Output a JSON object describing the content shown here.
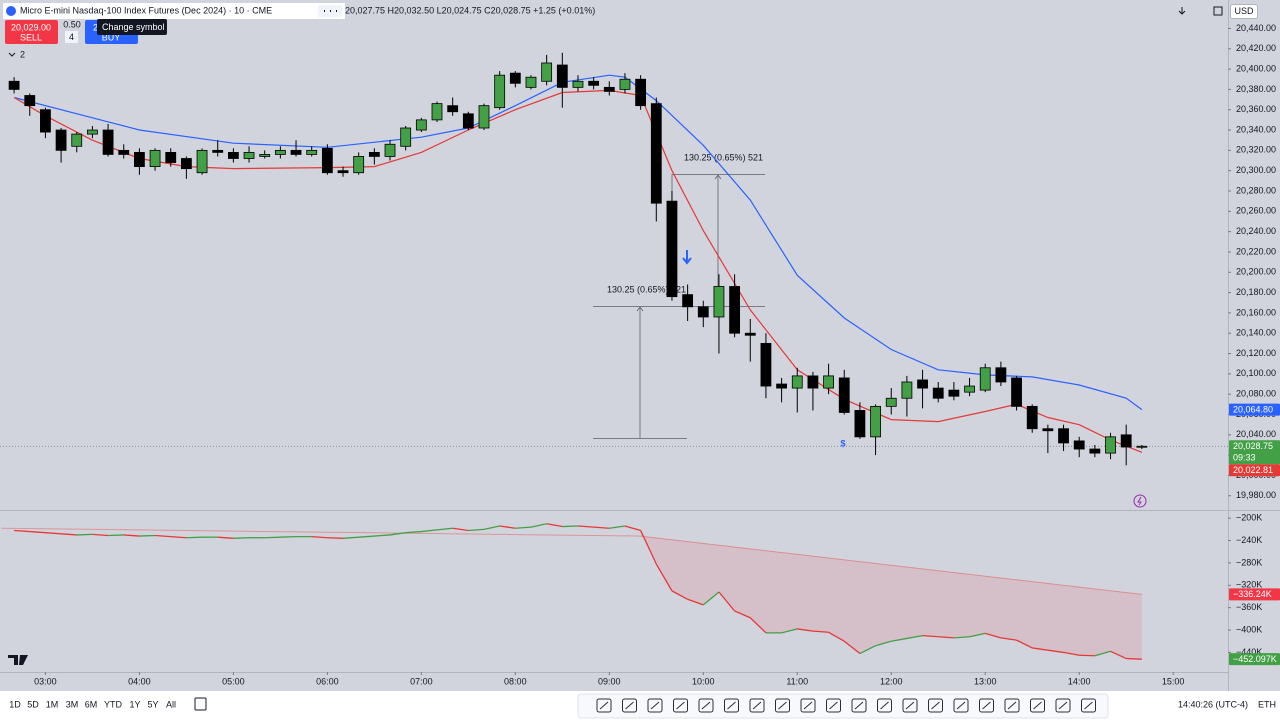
{
  "header": {
    "title": "Micro E-mini Nasdaq-100 Index Futures (Dec 2024) · 10 · CME",
    "ohlc": "20,027.75 H20,032.50 L20,024.75 C20,028.75 +1.25 (+0.01%)",
    "currency": "USD",
    "sell_price": "20,029.00",
    "sell": "SELL",
    "spread": "0.50",
    "quantity": "4",
    "buy_price": "2",
    "buy": "BUY",
    "tooltip": "Change symbol",
    "indicators": "2"
  },
  "chart_data": [
    {
      "type": "candlestick",
      "x": [
        160,
        170,
        180,
        190,
        200,
        210,
        220,
        230,
        240,
        250,
        260,
        270,
        280,
        290,
        300,
        310,
        320,
        330,
        340,
        350,
        360,
        370,
        380,
        390,
        400,
        410,
        420,
        430,
        440,
        450,
        460,
        470,
        480,
        490,
        500,
        510,
        520,
        530,
        540,
        550,
        560,
        570,
        580,
        590,
        600,
        610,
        620,
        630,
        640,
        650,
        660,
        670,
        680,
        690,
        700,
        710,
        720,
        730,
        740,
        750,
        760,
        770,
        780,
        790,
        800,
        810,
        820,
        830,
        840,
        850,
        860,
        870,
        880
      ],
      "open": [
        20388,
        20374,
        20360,
        20340,
        20324,
        20336,
        20340,
        20320,
        20318,
        20304,
        20318,
        20312,
        20298,
        20320,
        20318,
        20312,
        20314,
        20316,
        20320,
        20316,
        20322,
        20300,
        20298,
        20318,
        20314,
        20324,
        20340,
        20350,
        20364,
        20356,
        20342,
        20362,
        20396,
        20382,
        20388,
        20404,
        20382,
        20388,
        20382,
        20380,
        20390,
        20366,
        20270,
        20178,
        20166,
        20156,
        20186,
        20140,
        20130,
        20090,
        20086,
        20098,
        20086,
        20096,
        20064,
        20038,
        20068,
        20076,
        20094,
        20086,
        20084,
        20082,
        20084,
        20106,
        20096,
        20068,
        20046,
        20046,
        20034,
        20026,
        20022,
        20040,
        20028
      ],
      "high": [
        20392,
        20376,
        20362,
        20342,
        20338,
        20344,
        20346,
        20326,
        20322,
        20322,
        20322,
        20314,
        20322,
        20330,
        20322,
        20324,
        20320,
        20324,
        20330,
        20324,
        20326,
        20304,
        20318,
        20322,
        20330,
        20344,
        20352,
        20368,
        20372,
        20358,
        20366,
        20398,
        20398,
        20394,
        20414,
        20416,
        20394,
        20392,
        20388,
        20396,
        20394,
        20372,
        20280,
        20188,
        20172,
        20198,
        20198,
        20154,
        20140,
        20096,
        20106,
        20102,
        20110,
        20104,
        20072,
        20070,
        20086,
        20098,
        20104,
        20092,
        20092,
        20096,
        20110,
        20112,
        20098,
        20070,
        20050,
        20050,
        20038,
        20030,
        20042,
        20050,
        20030
      ],
      "low": [
        20376,
        20354,
        20332,
        20308,
        20318,
        20332,
        20314,
        20312,
        20296,
        20300,
        20304,
        20292,
        20296,
        20314,
        20308,
        20308,
        20312,
        20312,
        20314,
        20314,
        20296,
        20294,
        20296,
        20306,
        20310,
        20320,
        20338,
        20348,
        20354,
        20340,
        20340,
        20360,
        20382,
        20380,
        20384,
        20362,
        20378,
        20380,
        20374,
        20376,
        20360,
        20250,
        20172,
        20152,
        20146,
        20120,
        20136,
        20112,
        20076,
        20072,
        20062,
        20064,
        20080,
        20060,
        20036,
        20020,
        20060,
        20058,
        20066,
        20072,
        20074,
        20078,
        20082,
        20088,
        20064,
        20042,
        20022,
        20024,
        20018,
        20018,
        20016,
        20010,
        20026
      ],
      "close": [
        20380,
        20364,
        20338,
        20320,
        20336,
        20340,
        20316,
        20316,
        20304,
        20320,
        20308,
        20302,
        20320,
        20318,
        20312,
        20318,
        20316,
        20320,
        20316,
        20320,
        20298,
        20298,
        20314,
        20314,
        20326,
        20342,
        20350,
        20366,
        20358,
        20342,
        20364,
        20394,
        20386,
        20392,
        20406,
        20382,
        20388,
        20384,
        20378,
        20390,
        20364,
        20268,
        20176,
        20166,
        20156,
        20186,
        20140,
        20138,
        20088,
        20086,
        20098,
        20086,
        20098,
        20062,
        20038,
        20068,
        20076,
        20092,
        20086,
        20076,
        20078,
        20088,
        20106,
        20092,
        20068,
        20046,
        20044,
        20032,
        20026,
        20022,
        20038,
        20028,
        20028.75
      ],
      "up_color": "#43a047",
      "down_color": "#000000",
      "overlays": [
        {
          "color": "#2962ff",
          "x": [
            160,
            210,
            240,
            300,
            360,
            420,
            450,
            480,
            510,
            540,
            550,
            570,
            600,
            630,
            660,
            690,
            720,
            750,
            780,
            810,
            840,
            870,
            880
          ],
          "values": [
            20372,
            20352,
            20340,
            20327,
            20323,
            20333,
            20342,
            20364,
            20387,
            20394,
            20392,
            20369,
            20325,
            20271,
            20197,
            20155,
            20124,
            20104,
            20099,
            20097,
            20089,
            20076,
            20064.8
          ]
        },
        {
          "color": "#e53935",
          "x": [
            160,
            180,
            210,
            240,
            270,
            300,
            360,
            390,
            420,
            450,
            480,
            510,
            540,
            560,
            580,
            600,
            630,
            660,
            690,
            720,
            750,
            780,
            800,
            820,
            840,
            860,
            880
          ],
          "values": [
            20372,
            20354,
            20330,
            20312,
            20304,
            20302,
            20303,
            20304,
            20318,
            20340,
            20360,
            20377,
            20379,
            20374,
            20300,
            20241,
            20163,
            20104,
            20075,
            20055,
            20053,
            20063,
            20070,
            20057,
            20050,
            20035,
            20022.81
          ]
        }
      ],
      "xlim": [
        151,
        935
      ],
      "xticks": [
        {
          "value": 180,
          "label": "03:00"
        },
        {
          "value": 240,
          "label": "04:00"
        },
        {
          "value": 300,
          "label": "05:00"
        },
        {
          "value": 360,
          "label": "06:00"
        },
        {
          "value": 420,
          "label": "07:00"
        },
        {
          "value": 480,
          "label": "08:00"
        },
        {
          "value": 540,
          "label": "09:00"
        },
        {
          "value": 600,
          "label": "10:00"
        },
        {
          "value": 660,
          "label": "11:00"
        },
        {
          "value": 720,
          "label": "12:00"
        },
        {
          "value": 780,
          "label": "13:00"
        },
        {
          "value": 840,
          "label": "14:00"
        },
        {
          "value": 900,
          "label": "15:00"
        }
      ],
      "ylim": [
        19966,
        20468
      ],
      "yticks": [
        {
          "value": 19980,
          "label": "19,980.00"
        },
        {
          "value": 20000,
          "label": "20,000.00"
        },
        {
          "value": 20020,
          "label": "20,020.00"
        },
        {
          "value": 20040,
          "label": "20,040.00"
        },
        {
          "value": 20060,
          "label": "20,060.00"
        },
        {
          "value": 20080,
          "label": "20,080.00"
        },
        {
          "value": 20100,
          "label": "20,100.00"
        },
        {
          "value": 20120,
          "label": "20,120.00"
        },
        {
          "value": 20140,
          "label": "20,140.00"
        },
        {
          "value": 20160,
          "label": "20,160.00"
        },
        {
          "value": 20180,
          "label": "20,180.00"
        },
        {
          "value": 20200,
          "label": "20,200.00"
        },
        {
          "value": 20220,
          "label": "20,220.00"
        },
        {
          "value": 20240,
          "label": "20,240.00"
        },
        {
          "value": 20260,
          "label": "20,260.00"
        },
        {
          "value": 20280,
          "label": "20,280.00"
        },
        {
          "value": 20300,
          "label": "20,300.00"
        },
        {
          "value": 20320,
          "label": "20,320.00"
        },
        {
          "value": 20340,
          "label": "20,340.00"
        },
        {
          "value": 20360,
          "label": "20,360.00"
        },
        {
          "value": 20380,
          "label": "20,380.00"
        },
        {
          "value": 20400,
          "label": "20,400.00"
        },
        {
          "value": 20420,
          "label": "20,420.00"
        },
        {
          "value": 20440,
          "label": "20,440.00"
        }
      ],
      "badges": [
        {
          "value": 20064.8,
          "label": "20,064.80",
          "color": "#2962ff"
        },
        {
          "value": 20028.75,
          "label": "20,028.75",
          "color": "#43a047",
          "countdown": "09:33"
        },
        {
          "value": 20022.81,
          "label": "20,022.81",
          "color": "#e53935"
        }
      ],
      "annotations": [
        "130.25 (0.65%) 521",
        "130.25 (0.65%) 521",
        "$"
      ]
    },
    {
      "type": "line",
      "x": [
        160,
        170,
        180,
        190,
        200,
        210,
        220,
        230,
        240,
        250,
        260,
        270,
        280,
        290,
        300,
        310,
        320,
        330,
        340,
        350,
        360,
        370,
        380,
        390,
        400,
        410,
        420,
        430,
        440,
        450,
        460,
        470,
        480,
        490,
        500,
        510,
        520,
        530,
        540,
        550,
        560,
        570,
        580,
        590,
        600,
        610,
        620,
        630,
        640,
        650,
        660,
        670,
        680,
        690,
        700,
        710,
        720,
        730,
        740,
        750,
        760,
        770,
        780,
        790,
        800,
        810,
        820,
        830,
        840,
        850,
        860,
        870,
        880
      ],
      "values": [
        -222,
        -224,
        -226,
        -228,
        -230,
        -229,
        -231,
        -230,
        -232,
        -231,
        -233,
        -235,
        -234,
        -234,
        -236,
        -235,
        -235,
        -234,
        -233,
        -233,
        -235,
        -236,
        -234,
        -232,
        -230,
        -226,
        -224,
        -221,
        -218,
        -222,
        -220,
        -214,
        -218,
        -216,
        -210,
        -215,
        -214,
        -216,
        -218,
        -214,
        -222,
        -282,
        -330,
        -345,
        -355,
        -332,
        -366,
        -378,
        -405,
        -405,
        -398,
        -402,
        -404,
        -420,
        -442,
        -428,
        -420,
        -415,
        -410,
        -412,
        -414,
        -412,
        -406,
        -414,
        -418,
        -432,
        -436,
        -440,
        -445,
        -446,
        -438,
        -451,
        -452.097
      ],
      "up_color": "#43a047",
      "down_color": "#e53935",
      "trend": {
        "color": "#e53935",
        "x": [
          152,
          560,
          880
        ],
        "values": [
          -218,
          -232,
          -336.24
        ]
      },
      "xlim": [
        151,
        935
      ],
      "ylim": [
        -475,
        -189
      ],
      "yticks": [
        {
          "value": -200,
          "label": "−200K"
        },
        {
          "value": -240,
          "label": "−240K"
        },
        {
          "value": -280,
          "label": "−280K"
        },
        {
          "value": -320,
          "label": "−320K"
        },
        {
          "value": -360,
          "label": "−360K"
        },
        {
          "value": -400,
          "label": "−400K"
        },
        {
          "value": -440,
          "label": "−440K"
        }
      ],
      "badges": [
        {
          "value": -336.24,
          "label": "−336.24K",
          "color": "#f23645"
        },
        {
          "value": -452.097,
          "label": "−452.097K",
          "color": "#43a047"
        }
      ]
    }
  ],
  "toolbar": {
    "ranges": [
      "1D",
      "5D",
      "1M",
      "3M",
      "6M",
      "YTD",
      "1Y",
      "5Y",
      "All"
    ],
    "clock": "14:40:26 (UTC-4)",
    "session": "ETH"
  }
}
